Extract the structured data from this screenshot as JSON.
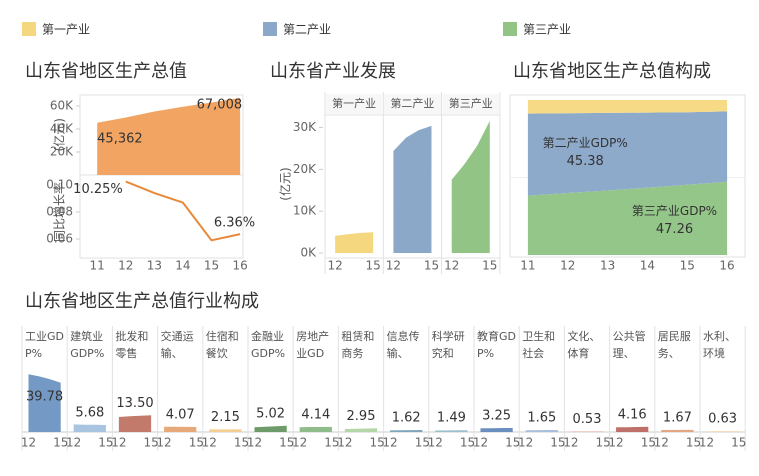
{
  "chart_data": [
    {
      "type": "area",
      "title": "山东省地区生产总值",
      "y_label": "(亿元)",
      "x": [
        11,
        12,
        13,
        14,
        15,
        16
      ],
      "xlim": [
        10.4,
        16.1
      ],
      "values": [
        45362,
        50013,
        55230,
        59427,
        63002,
        67008
      ],
      "value_labels": [
        "45,362",
        null,
        null,
        null,
        null,
        "67,008"
      ],
      "color": "#f2a563",
      "ylim": [
        0,
        70000
      ],
      "yticks": [
        {
          "value": 20000,
          "label": "20K"
        },
        {
          "value": 40000,
          "label": "40K"
        },
        {
          "value": 60000,
          "label": "60K"
        }
      ]
    },
    {
      "type": "line",
      "y_label": "同比增长率",
      "x": [
        11,
        12,
        13,
        14,
        15,
        16
      ],
      "xlim": [
        10.4,
        16.1
      ],
      "xticks": [
        11,
        12,
        13,
        14,
        15,
        16
      ],
      "values": [
        null,
        0.1025,
        0.094,
        0.087,
        0.059,
        0.0636
      ],
      "value_labels": [
        null,
        "10.25%",
        null,
        null,
        null,
        "6.36%"
      ],
      "color": "#e8893a",
      "ylim": [
        0.05,
        0.11
      ],
      "yticks": [
        0.06,
        0.08,
        {
          "value": 0.1,
          "label": "0.10"
        }
      ]
    },
    {
      "type": "panels",
      "title": "山东省产业发展",
      "y_label": "(亿元)",
      "x": [
        12,
        13,
        14,
        15
      ],
      "xlim": [
        11.2,
        15.8
      ],
      "xticks": [
        12,
        15
      ],
      "ylim": [
        0,
        33000
      ],
      "yticks": [
        {
          "value": 0,
          "label": "0K"
        },
        {
          "value": 10000,
          "label": "10K"
        },
        {
          "value": 20000,
          "label": "20K"
        },
        {
          "value": 30000,
          "label": "30K"
        }
      ],
      "series": [
        {
          "name": "第一产业",
          "color": "#f4d77e",
          "values": [
            4100,
            4500,
            4800,
            4980
          ]
        },
        {
          "name": "第二产业",
          "color": "#8ca8c9",
          "values": [
            24400,
            27600,
            29400,
            30400
          ]
        },
        {
          "name": "第三产业",
          "color": "#92c486",
          "values": [
            17500,
            21200,
            25600,
            31600
          ]
        }
      ]
    },
    {
      "type": "stack",
      "title": "山东省地区生产总值构成",
      "x": [
        11,
        12,
        13,
        14,
        15,
        16
      ],
      "xlim": [
        10.55,
        16.45
      ],
      "xticks": [
        11,
        12,
        13,
        14,
        15,
        16
      ],
      "ylim": [
        0,
        100
      ],
      "series": [
        {
          "name": "第三产业GDP%",
          "color": "#94c68a",
          "values": [
            38.3,
            40.0,
            41.6,
            43.5,
            45.3,
            47.26
          ]
        },
        {
          "name": "第二产业GDP%",
          "color": "#8eaacb",
          "values": [
            52.9,
            51.4,
            50.1,
            48.4,
            46.8,
            45.38
          ]
        },
        {
          "color": "#f6da86",
          "values": [
            8.8,
            8.6,
            8.3,
            8.1,
            7.9,
            7.36
          ]
        }
      ]
    },
    {
      "type": "panels",
      "title": "山东省地区生产总值行业构成",
      "x": [
        12,
        13,
        14,
        15
      ],
      "xlim": [
        11.4,
        15.6
      ],
      "xticks": [
        12,
        15
      ],
      "ylim": [
        0,
        50
      ],
      "data_labels": true,
      "series": [
        {
          "name": "工业GDP%",
          "color": "#7499c4",
          "values": [
            46.5,
            44.8,
            42.6,
            39.78
          ]
        },
        {
          "name": "建筑业GDP%",
          "color": "#a9c4e0",
          "values": [
            6.1,
            5.9,
            5.8,
            5.68
          ]
        },
        {
          "name": "批发和零售业...",
          "color": "#c27a6b",
          "values": [
            12.1,
            12.7,
            13.1,
            13.5
          ],
          "value_label": "13.50"
        },
        {
          "name": "交通运输、仓...",
          "color": "#e8a97a",
          "values": [
            4.3,
            4.2,
            4.1,
            4.07
          ]
        },
        {
          "name": "住宿和餐饮业...",
          "color": "#f4cf92",
          "values": [
            2.1,
            2.1,
            2.1,
            2.15
          ]
        },
        {
          "name": "金融业GDP%",
          "color": "#6f9a6a",
          "values": [
            3.9,
            4.3,
            4.7,
            5.02
          ]
        },
        {
          "name": "房地产业GDP...",
          "color": "#8fbc8a",
          "values": [
            3.8,
            4.0,
            4.0,
            4.14
          ]
        },
        {
          "name": "租赁和商务服...",
          "color": "#b5d6a8",
          "values": [
            2.4,
            2.6,
            2.8,
            2.95
          ]
        },
        {
          "name": "信息传输、软...",
          "color": "#7fa6b8",
          "values": [
            1.3,
            1.4,
            1.5,
            1.62
          ]
        },
        {
          "name": "科学研究和技...",
          "color": "#9cc0cc",
          "values": [
            1.2,
            1.3,
            1.4,
            1.49
          ]
        },
        {
          "name": "教育GDP%",
          "color": "#6a8fbf",
          "values": [
            3.1,
            3.1,
            3.2,
            3.25
          ]
        },
        {
          "name": "卫生和社会工...",
          "color": "#a8c0dc",
          "values": [
            1.4,
            1.5,
            1.6,
            1.65
          ]
        },
        {
          "name": "文化、体育和...",
          "color": "#e6b8a8",
          "values": [
            0.5,
            0.5,
            0.5,
            0.53
          ]
        },
        {
          "name": "公共管理、社...",
          "color": "#c0706a",
          "values": [
            3.8,
            3.9,
            4.0,
            4.16
          ]
        },
        {
          "name": "居民服务、修...",
          "color": "#e4a583",
          "values": [
            1.6,
            1.6,
            1.7,
            1.67
          ]
        },
        {
          "name": "水利、环境和...",
          "color": "#f2cfa6",
          "values": [
            0.5,
            0.6,
            0.6,
            0.63
          ]
        }
      ]
    }
  ]
}
